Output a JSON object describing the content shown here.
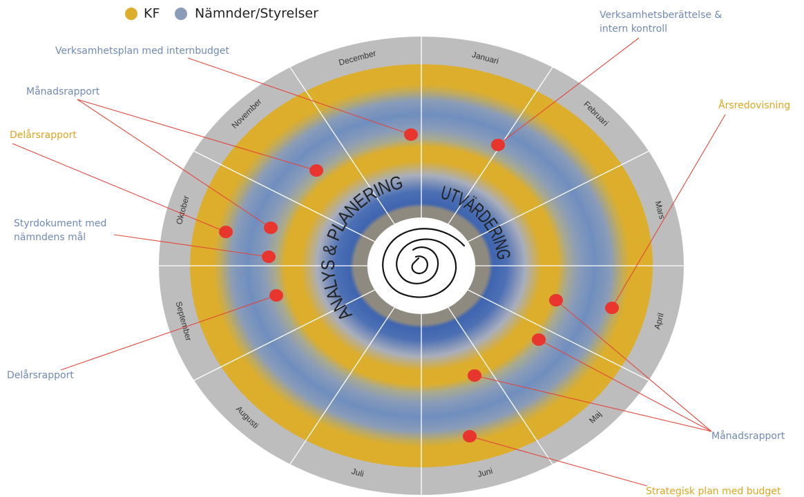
{
  "legend": [
    {
      "label": "KF"
    },
    {
      "label": "Nämnder/Styrelser"
    }
  ],
  "months": [
    "Januari",
    "Februari",
    "Mars",
    "April",
    "Maj",
    "Juni",
    "Juli",
    "Augusti",
    "September",
    "Oktober",
    "November",
    "December"
  ],
  "center_labels": {
    "left": "ANALYS & PLANERING",
    "right": "UTVÄRDERING"
  },
  "annotations": [
    {
      "text": [
        "Verksamhetsplan med internbudget"
      ]
    },
    {
      "text": [
        "Månadsrapport"
      ]
    },
    {
      "text": [
        "Delårsrapport"
      ]
    },
    {
      "text": [
        "Styrdokument med",
        "nämndens mål"
      ]
    },
    {
      "text": [
        "Delårsrapport"
      ]
    },
    {
      "text": [
        "Verksamhetsberättelse &",
        "intern kontroll"
      ]
    },
    {
      "text": [
        "Årsredovisning"
      ]
    },
    {
      "text": [
        "Månadsrapport"
      ]
    },
    {
      "text": [
        "Strategisk plan med budget"
      ]
    }
  ]
}
